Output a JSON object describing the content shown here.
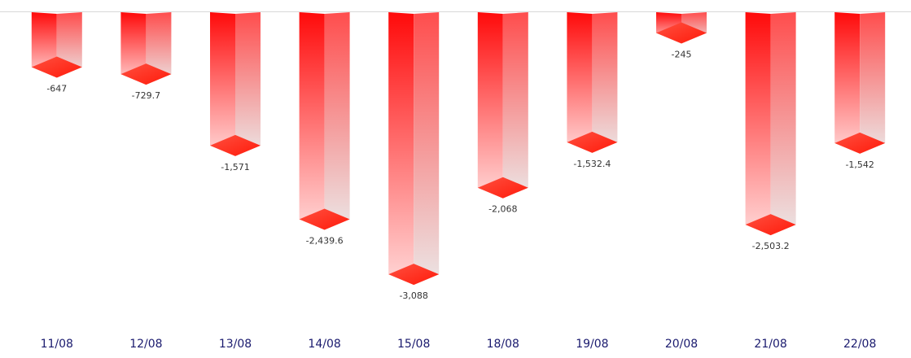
{
  "chart_data": {
    "type": "bar3d",
    "categories": [
      "11/08",
      "12/08",
      "13/08",
      "14/08",
      "15/08",
      "18/08",
      "19/08",
      "20/08",
      "21/08",
      "22/08"
    ],
    "values": [
      -647,
      -729.7,
      -1571,
      -2439.6,
      -3088,
      -2068,
      -1532.4,
      -245,
      -2503.2,
      -1542
    ],
    "value_labels": [
      "-647",
      "-729.7",
      "-1,571",
      "-2,439.6",
      "-3,088",
      "-2,068",
      "-1,532.4",
      "-245",
      "-2,503.2",
      "-1,542"
    ],
    "color": "#ff0000"
  }
}
